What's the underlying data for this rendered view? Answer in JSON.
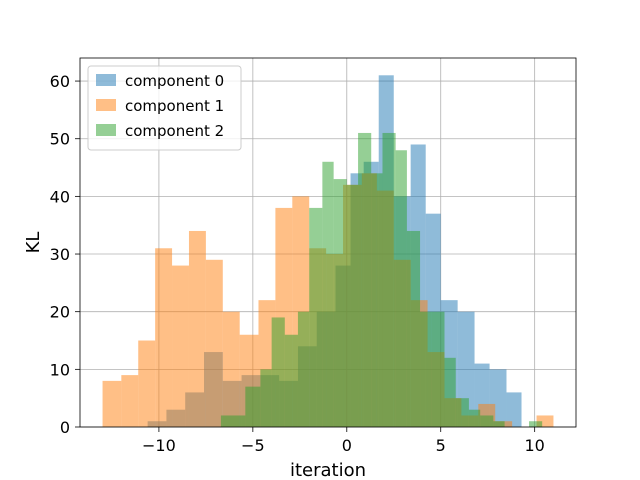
{
  "chart_data": {
    "type": "bar",
    "subtype": "overlapping-histogram",
    "title": "",
    "xlabel": "iteration",
    "ylabel": "KL",
    "xlim": [
      -14.2,
      12.2
    ],
    "ylim": [
      0,
      64
    ],
    "xticks": [
      -10,
      -5,
      0,
      5,
      10
    ],
    "xtick_labels": [
      "−10",
      "−5",
      "0",
      "5",
      "10"
    ],
    "yticks": [
      0,
      10,
      20,
      30,
      40,
      50,
      60
    ],
    "ytick_labels": [
      "0",
      "10",
      "20",
      "30",
      "40",
      "50",
      "60"
    ],
    "grid": true,
    "legend_position": "upper-left",
    "series": [
      {
        "name": "component 0",
        "color": "#1f77b4",
        "alpha": 0.5,
        "bins": [
          {
            "x0": -10.6,
            "x1": -9.6,
            "count": 1
          },
          {
            "x0": -9.6,
            "x1": -8.6,
            "count": 3
          },
          {
            "x0": -8.6,
            "x1": -7.6,
            "count": 6
          },
          {
            "x0": -7.6,
            "x1": -6.6,
            "count": 13
          },
          {
            "x0": -6.6,
            "x1": -5.6,
            "count": 8
          },
          {
            "x0": -5.6,
            "x1": -4.6,
            "count": 9
          },
          {
            "x0": -4.6,
            "x1": -3.6,
            "count": 9
          },
          {
            "x0": -3.6,
            "x1": -2.6,
            "count": 8
          },
          {
            "x0": -2.6,
            "x1": -1.6,
            "count": 14
          },
          {
            "x0": -1.6,
            "x1": -0.6,
            "count": 20
          },
          {
            "x0": -0.6,
            "x1": 0.2,
            "count": 28
          },
          {
            "x0": 0.2,
            "x1": 0.9,
            "count": 44
          },
          {
            "x0": 0.9,
            "x1": 1.7,
            "count": 46
          },
          {
            "x0": 1.7,
            "x1": 2.5,
            "count": 61
          },
          {
            "x0": 2.5,
            "x1": 3.4,
            "count": 40
          },
          {
            "x0": 3.4,
            "x1": 4.2,
            "count": 49
          },
          {
            "x0": 4.2,
            "x1": 5.0,
            "count": 37
          },
          {
            "x0": 5.0,
            "x1": 5.9,
            "count": 22
          },
          {
            "x0": 5.9,
            "x1": 6.8,
            "count": 20
          },
          {
            "x0": 6.8,
            "x1": 7.6,
            "count": 11
          },
          {
            "x0": 7.6,
            "x1": 8.5,
            "count": 10
          },
          {
            "x0": 8.5,
            "x1": 9.3,
            "count": 6
          }
        ]
      },
      {
        "name": "component 1",
        "color": "#ff7f0e",
        "alpha": 0.5,
        "bins": [
          {
            "x0": -13.0,
            "x1": -12.0,
            "count": 8
          },
          {
            "x0": -12.0,
            "x1": -11.1,
            "count": 9
          },
          {
            "x0": -11.1,
            "x1": -10.2,
            "count": 15
          },
          {
            "x0": -10.2,
            "x1": -9.3,
            "count": 31
          },
          {
            "x0": -9.3,
            "x1": -8.4,
            "count": 28
          },
          {
            "x0": -8.4,
            "x1": -7.5,
            "count": 34
          },
          {
            "x0": -7.5,
            "x1": -6.6,
            "count": 29
          },
          {
            "x0": -6.6,
            "x1": -5.7,
            "count": 20
          },
          {
            "x0": -5.7,
            "x1": -4.7,
            "count": 16
          },
          {
            "x0": -4.7,
            "x1": -3.8,
            "count": 22
          },
          {
            "x0": -3.8,
            "x1": -2.9,
            "count": 38
          },
          {
            "x0": -2.9,
            "x1": -2.0,
            "count": 40
          },
          {
            "x0": -2.0,
            "x1": -1.1,
            "count": 31
          },
          {
            "x0": -1.1,
            "x1": -0.2,
            "count": 30
          },
          {
            "x0": -0.2,
            "x1": 0.8,
            "count": 42
          },
          {
            "x0": 0.8,
            "x1": 1.6,
            "count": 44
          },
          {
            "x0": 1.6,
            "x1": 2.5,
            "count": 41
          },
          {
            "x0": 2.5,
            "x1": 3.4,
            "count": 29
          },
          {
            "x0": 3.4,
            "x1": 4.3,
            "count": 22
          },
          {
            "x0": 4.3,
            "x1": 5.2,
            "count": 13
          },
          {
            "x0": 5.2,
            "x1": 6.1,
            "count": 5
          },
          {
            "x0": 6.1,
            "x1": 7.0,
            "count": 2
          },
          {
            "x0": 7.0,
            "x1": 7.9,
            "count": 4
          },
          {
            "x0": 7.9,
            "x1": 8.8,
            "count": 1
          },
          {
            "x0": 10.1,
            "x1": 11.0,
            "count": 2
          }
        ]
      },
      {
        "name": "component 2",
        "color": "#2ca02c",
        "alpha": 0.5,
        "bins": [
          {
            "x0": -6.7,
            "x1": -5.4,
            "count": 2
          },
          {
            "x0": -5.4,
            "x1": -4.6,
            "count": 7
          },
          {
            "x0": -4.6,
            "x1": -4.0,
            "count": 10
          },
          {
            "x0": -4.0,
            "x1": -3.3,
            "count": 19
          },
          {
            "x0": -3.3,
            "x1": -2.6,
            "count": 16
          },
          {
            "x0": -2.6,
            "x1": -2.0,
            "count": 20
          },
          {
            "x0": -2.0,
            "x1": -1.3,
            "count": 38
          },
          {
            "x0": -1.3,
            "x1": -0.7,
            "count": 46
          },
          {
            "x0": -0.7,
            "x1": 0.0,
            "count": 43
          },
          {
            "x0": 0.0,
            "x1": 0.6,
            "count": 42
          },
          {
            "x0": 0.6,
            "x1": 1.3,
            "count": 51
          },
          {
            "x0": 1.3,
            "x1": 1.9,
            "count": 44
          },
          {
            "x0": 1.9,
            "x1": 2.6,
            "count": 51
          },
          {
            "x0": 2.6,
            "x1": 3.2,
            "count": 48
          },
          {
            "x0": 3.2,
            "x1": 3.9,
            "count": 34
          },
          {
            "x0": 3.9,
            "x1": 4.5,
            "count": 20
          },
          {
            "x0": 4.5,
            "x1": 5.2,
            "count": 20
          },
          {
            "x0": 5.2,
            "x1": 5.8,
            "count": 12
          },
          {
            "x0": 5.8,
            "x1": 6.5,
            "count": 5
          },
          {
            "x0": 6.5,
            "x1": 7.1,
            "count": 3
          },
          {
            "x0": 7.1,
            "x1": 7.8,
            "count": 2
          },
          {
            "x0": 7.8,
            "x1": 8.4,
            "count": 1
          },
          {
            "x0": 9.7,
            "x1": 10.4,
            "count": 1
          }
        ]
      }
    ]
  }
}
